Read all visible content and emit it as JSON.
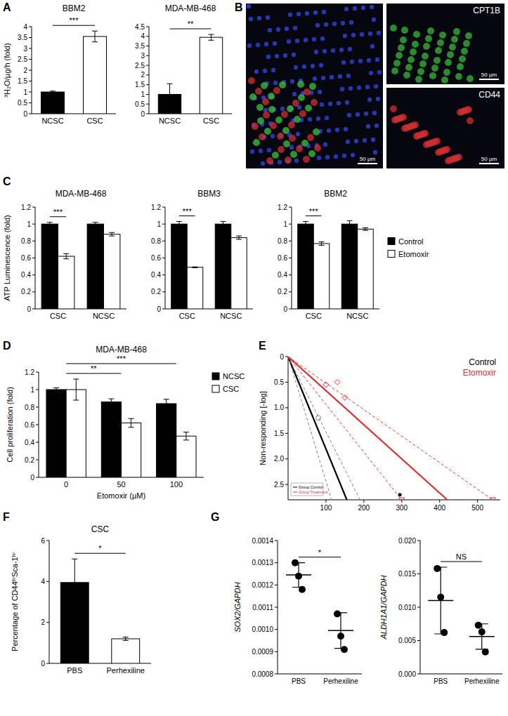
{
  "panels": [
    "A",
    "B",
    "C",
    "D",
    "E",
    "F",
    "G"
  ],
  "micrograph": {
    "channels": [
      "CPT1B",
      "CD44"
    ],
    "scale_bar": "50 µm"
  },
  "chart_data": [
    {
      "type": "bar",
      "title": "BBM2",
      "y_label": "³H₂O/µg/h (fold)",
      "categories": [
        "NCSC",
        "CSC"
      ],
      "values": [
        1,
        3.55
      ],
      "errors": [
        0.04,
        0.25
      ],
      "colors": [
        "#000000",
        "#ffffff"
      ],
      "ylim": [
        0,
        4
      ],
      "yticks": [
        0,
        0.5,
        1,
        1.5,
        2,
        2.5,
        3,
        3.5,
        4
      ],
      "annotations": [
        {
          "text": "***",
          "categories": [
            "NCSC",
            "CSC"
          ]
        }
      ]
    },
    {
      "type": "bar",
      "title": "MDA-MB-468",
      "categories": [
        "NCSC",
        "CSC"
      ],
      "values": [
        1,
        3.95
      ],
      "errors": [
        0.55,
        0.15
      ],
      "colors": [
        "#000000",
        "#ffffff"
      ],
      "ylim": [
        0,
        4.5
      ],
      "yticks": [
        0,
        0.5,
        1,
        1.5,
        2,
        2.5,
        3,
        3.5,
        4,
        4.5
      ],
      "annotations": [
        {
          "text": "**",
          "categories": [
            "NCSC",
            "CSC"
          ]
        }
      ]
    },
    {
      "type": "bar",
      "title": "MDA-MB-468",
      "y_label": "ATP Luminescence (fold)",
      "categories": [
        "CSC",
        "NCSC"
      ],
      "series": [
        {
          "name": "Control",
          "color": "#000000",
          "values": [
            1,
            1
          ],
          "errors": [
            0.02,
            0.02
          ]
        },
        {
          "name": "Etomoxir",
          "color": "#ffffff",
          "values": [
            0.62,
            0.88
          ],
          "errors": [
            0.03,
            0.02
          ]
        }
      ],
      "ylim": [
        0,
        1.2
      ],
      "yticks": [
        0,
        0.2,
        0.4,
        0.6,
        0.8,
        1,
        1.2
      ],
      "annotations": [
        {
          "text": "***",
          "categories": [
            "CSC"
          ]
        }
      ]
    },
    {
      "type": "bar",
      "title": "BBM3",
      "categories": [
        "CSC",
        "NCSC"
      ],
      "series": [
        {
          "name": "Control",
          "color": "#000000",
          "values": [
            1,
            1
          ],
          "errors": [
            0.03,
            0.03
          ]
        },
        {
          "name": "Etomoxir",
          "color": "#ffffff",
          "values": [
            0.49,
            0.84
          ],
          "errors": [
            0.005,
            0.02
          ]
        }
      ],
      "ylim": [
        0,
        1.2
      ],
      "yticks": [
        0,
        0.2,
        0.4,
        0.6,
        0.8,
        1,
        1.2
      ],
      "annotations": [
        {
          "text": "***",
          "categories": [
            "CSC"
          ]
        }
      ]
    },
    {
      "type": "bar",
      "title": "BBM2",
      "categories": [
        "CSC",
        "NCSC"
      ],
      "series": [
        {
          "name": "Control",
          "color": "#000000",
          "values": [
            1,
            1
          ],
          "errors": [
            0.03,
            0.04
          ]
        },
        {
          "name": "Etomoxir",
          "color": "#ffffff",
          "values": [
            0.77,
            0.94
          ],
          "errors": [
            0.02,
            0.015
          ]
        }
      ],
      "ylim": [
        0,
        1.2
      ],
      "yticks": [
        0,
        0.2,
        0.4,
        0.6,
        0.8,
        1,
        1.2
      ],
      "legend": "right",
      "annotations": [
        {
          "text": "***",
          "categories": [
            "CSC"
          ]
        }
      ]
    },
    {
      "type": "bar",
      "title": "MDA-MB-468",
      "y_label": "Cell proliferation (fold)",
      "x_label": "Etomoxir (µM)",
      "categories": [
        "0",
        "50",
        "100"
      ],
      "series": [
        {
          "name": "NCSC",
          "color": "#000000",
          "values": [
            1,
            0.86,
            0.84
          ],
          "errors": [
            0.02,
            0.035,
            0.05
          ]
        },
        {
          "name": "CSC",
          "color": "#ffffff",
          "values": [
            1,
            0.62,
            0.47
          ],
          "errors": [
            0.12,
            0.05,
            0.045
          ]
        }
      ],
      "ylim": [
        0,
        1.2
      ],
      "yticks": [
        0,
        0.2,
        0.4,
        0.6,
        0.8,
        1,
        1.2
      ],
      "legend": "right",
      "annotations": [
        {
          "text": "**",
          "categories": [
            "0",
            "50"
          ]
        },
        {
          "text": "***",
          "categories": [
            "0",
            "100"
          ]
        }
      ]
    },
    {
      "type": "line",
      "y_label": "Non-responding [-log]",
      "xlim": [
        0,
        560
      ],
      "xticks": [
        100,
        200,
        300,
        400,
        500
      ],
      "ylim": [
        2.8,
        0
      ],
      "yticks": [
        0,
        0.5,
        {
          "value": 1,
          "label": "1.0"
        },
        1.5,
        {
          "value": 2,
          "label": "2.0"
        },
        2.5
      ],
      "legend": "upper-right",
      "inset_legend": [
        "Group Control",
        "Group Treatment"
      ],
      "series": [
        {
          "name": "Control",
          "color": "#000000",
          "line_style": "solid",
          "x": [
            0,
            155
          ],
          "values": [
            0,
            2.8
          ]
        },
        {
          "color": "#808080",
          "line_style": "dashed",
          "x": [
            0,
            115
          ],
          "values": [
            0,
            2.8
          ]
        },
        {
          "color": "#808080",
          "line_style": "dashed",
          "x": [
            0,
            190
          ],
          "values": [
            0,
            2.8
          ]
        },
        {
          "name": "Etomoxir",
          "color": "#e03030",
          "line_style": "solid",
          "x": [
            0,
            420
          ],
          "values": [
            0,
            2.8
          ]
        },
        {
          "color": "#e03030",
          "line_style": "dashed",
          "x": [
            0,
            300
          ],
          "values": [
            0,
            2.8
          ]
        },
        {
          "color": "#e03030",
          "line_style": "dashed",
          "x": [
            0,
            540
          ],
          "values": [
            0,
            2.8
          ]
        },
        {
          "type": "scatter",
          "color": "#808080",
          "marker": "circle",
          "x": [
            80
          ],
          "values": [
            1.2
          ]
        },
        {
          "type": "scatter",
          "color": "#e03030",
          "marker": "diamond",
          "x": [
            100,
            130,
            150
          ],
          "values": [
            0.55,
            0.5,
            0.8
          ]
        },
        {
          "type": "scatter",
          "color": "#000000",
          "marker": "dot",
          "x": [
            295
          ],
          "values": [
            2.7
          ]
        },
        {
          "type": "scatter",
          "color": "#e03030",
          "marker": "triangle-down",
          "x": [
            300,
            540
          ],
          "values": [
            2.8,
            2.8
          ]
        }
      ]
    },
    {
      "type": "bar",
      "title": "CSC",
      "y_label": "Percentage of CD44ʰⁱSca-1ʰⁱ",
      "categories": [
        "PBS",
        "Perhexiline"
      ],
      "values": [
        3.95,
        1.2
      ],
      "errors": [
        1.15,
        0.08
      ],
      "colors": [
        "#000000",
        "#ffffff"
      ],
      "ylim": [
        0,
        6
      ],
      "yticks": [
        0,
        2,
        4,
        6
      ],
      "annotations": [
        {
          "text": "*",
          "categories": [
            "PBS",
            "Perhexiline"
          ]
        }
      ]
    },
    {
      "type": "dot",
      "y_label": "SOX2/GAPDH",
      "categories": [
        "PBS",
        "Perhexiline"
      ],
      "points": [
        [
          0.0013,
          0.00124,
          0.00118
        ],
        [
          0.00107,
          0.00097,
          0.00091
        ]
      ],
      "values": [
        0.001245,
        0.000995
      ],
      "errors": [
        5.5e-05,
        8e-05
      ],
      "ylim": [
        0.0008,
        0.0014
      ],
      "yticks": [
        0.0008,
        0.0009,
        {
          "value": 0.001,
          "label": "0.0010"
        },
        0.0011,
        0.0012,
        0.0013,
        0.0014
      ],
      "annotations": [
        {
          "text": "*",
          "categories": [
            "PBS",
            "Perhexiline"
          ]
        }
      ]
    },
    {
      "type": "dot",
      "y_label": "ALDH1A1/GAPDH",
      "categories": [
        "PBS",
        "Perhexiline"
      ],
      "points": [
        [
          0.0158,
          0.0115,
          0.0062
        ],
        [
          0.0073,
          0.0063,
          0.0033
        ]
      ],
      "values": [
        0.011,
        0.0056
      ],
      "errors": [
        0.005,
        0.0019
      ],
      "ylim": [
        0,
        0.02
      ],
      "yticks": [
        {
          "value": 0,
          "label": "0.000"
        },
        0.005,
        {
          "value": 0.01,
          "label": "0.010"
        },
        0.015,
        {
          "value": 0.02,
          "label": "0.020"
        }
      ],
      "annotations": [
        {
          "text": "NS",
          "categories": [
            "PBS",
            "Perhexiline"
          ]
        }
      ]
    }
  ]
}
